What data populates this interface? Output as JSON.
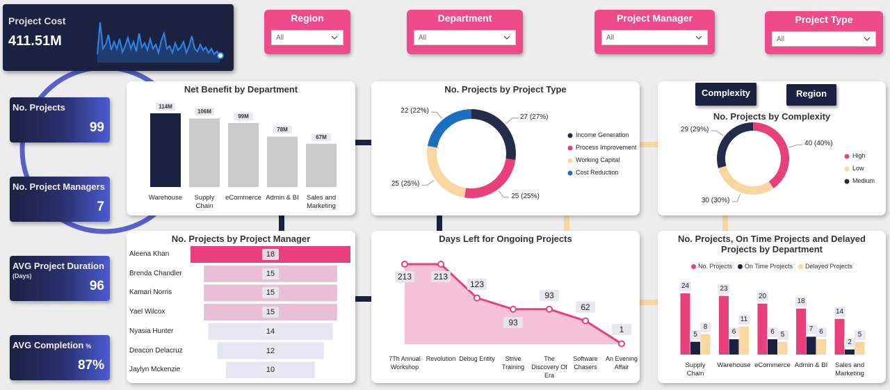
{
  "kpis": [
    {
      "label": "Project Cost",
      "value": "411.51M"
    },
    {
      "label": "No. Projects",
      "value": "99"
    },
    {
      "label": "No. Project Managers",
      "value": "7"
    },
    {
      "label": "AVG Project Duration",
      "sub": "(Days)",
      "value": "96"
    },
    {
      "label": "AVG Completion",
      "unit": "%",
      "value": "87%"
    }
  ],
  "filters": [
    {
      "label": "Region",
      "value": "All"
    },
    {
      "label": "Department",
      "value": "All"
    },
    {
      "label": "Project Manager",
      "value": "All"
    },
    {
      "label": "Project Type",
      "value": "All"
    }
  ],
  "tabs": [
    "Complexity",
    "Region"
  ],
  "chart_data": [
    {
      "type": "bar",
      "title": "Net Benefit by Department",
      "categories": [
        "Warehouse",
        "Supply Chain",
        "eCommerce",
        "Admin & BI",
        "Sales and Marketing"
      ],
      "values": [
        114,
        106,
        99,
        78,
        67
      ],
      "value_labels": [
        "114M",
        "106M",
        "99M",
        "78M",
        "67M"
      ],
      "colors": [
        "#1b2141",
        "#cbcbcb",
        "#cbcbcb",
        "#cbcbcb",
        "#cbcbcb"
      ]
    },
    {
      "type": "pie",
      "donut": true,
      "title": "No. Projects by Project Type",
      "categories": [
        "Income Generation",
        "Process Improvement",
        "Working Capital",
        "Cost Reduction"
      ],
      "values": [
        27,
        25,
        25,
        22
      ],
      "value_labels": [
        "27 (27%)",
        "25 (25%)",
        "25 (25%)",
        "22 (22%)"
      ],
      "colors": [
        "#252c4a",
        "#e8407b",
        "#fad7a0",
        "#1a6fc0"
      ]
    },
    {
      "type": "pie",
      "donut": true,
      "title": "No. Projects by Complexity",
      "categories": [
        "High",
        "Low",
        "Medium"
      ],
      "values": [
        40,
        30,
        29
      ],
      "value_labels": [
        "40 (40%)",
        "30 (30%)",
        "29 (29%)"
      ],
      "colors": [
        "#e8407b",
        "#fad7a0",
        "#252c4a"
      ]
    },
    {
      "type": "bar",
      "orientation": "horizontal",
      "title": "No. Projects by Project Manager",
      "categories": [
        "Aleena Khan",
        "Brenda Chandler",
        "Kamari Norris",
        "Yael Wilcox",
        "Nyasia Hunter",
        "Deacon Delacruz",
        "Jaylyn Mckenzie"
      ],
      "values": [
        18,
        15,
        15,
        15,
        14,
        12,
        10
      ],
      "colors": [
        "#e8407b",
        "#e8bfd6",
        "#e8bfd6",
        "#e8bfd6",
        "#e4e7f1",
        "#e4e7f1",
        "#e4e7f1"
      ]
    },
    {
      "type": "area",
      "title": "Days Left for Ongoing Projects",
      "categories": [
        "7Th Annual Workshop",
        "Revolution",
        "Debug Entity",
        "Strive Training",
        "The Discovery Of Era",
        "Software Chasers",
        "An Evening Affair"
      ],
      "values": [
        213,
        213,
        123,
        93,
        93,
        62,
        1
      ],
      "color": "#e8407b",
      "fill_color": "#f6c2d7"
    },
    {
      "type": "bar",
      "title": "No. Projects, On Time Projects and Delayed Projects by Department",
      "categories": [
        "Supply Chain",
        "Warehouse",
        "eCommerce",
        "Admin & BI",
        "Sales and Marketing"
      ],
      "series": [
        {
          "name": "No. Projects",
          "color": "#e8407b",
          "values": [
            24,
            23,
            20,
            18,
            14
          ]
        },
        {
          "name": "On Time Projects",
          "color": "#1b2141",
          "values": [
            5,
            6,
            6,
            7,
            2
          ]
        },
        {
          "name": "Delayed Projects",
          "color": "#fad7a0",
          "values": [
            8,
            11,
            5,
            6,
            5
          ]
        }
      ]
    }
  ]
}
